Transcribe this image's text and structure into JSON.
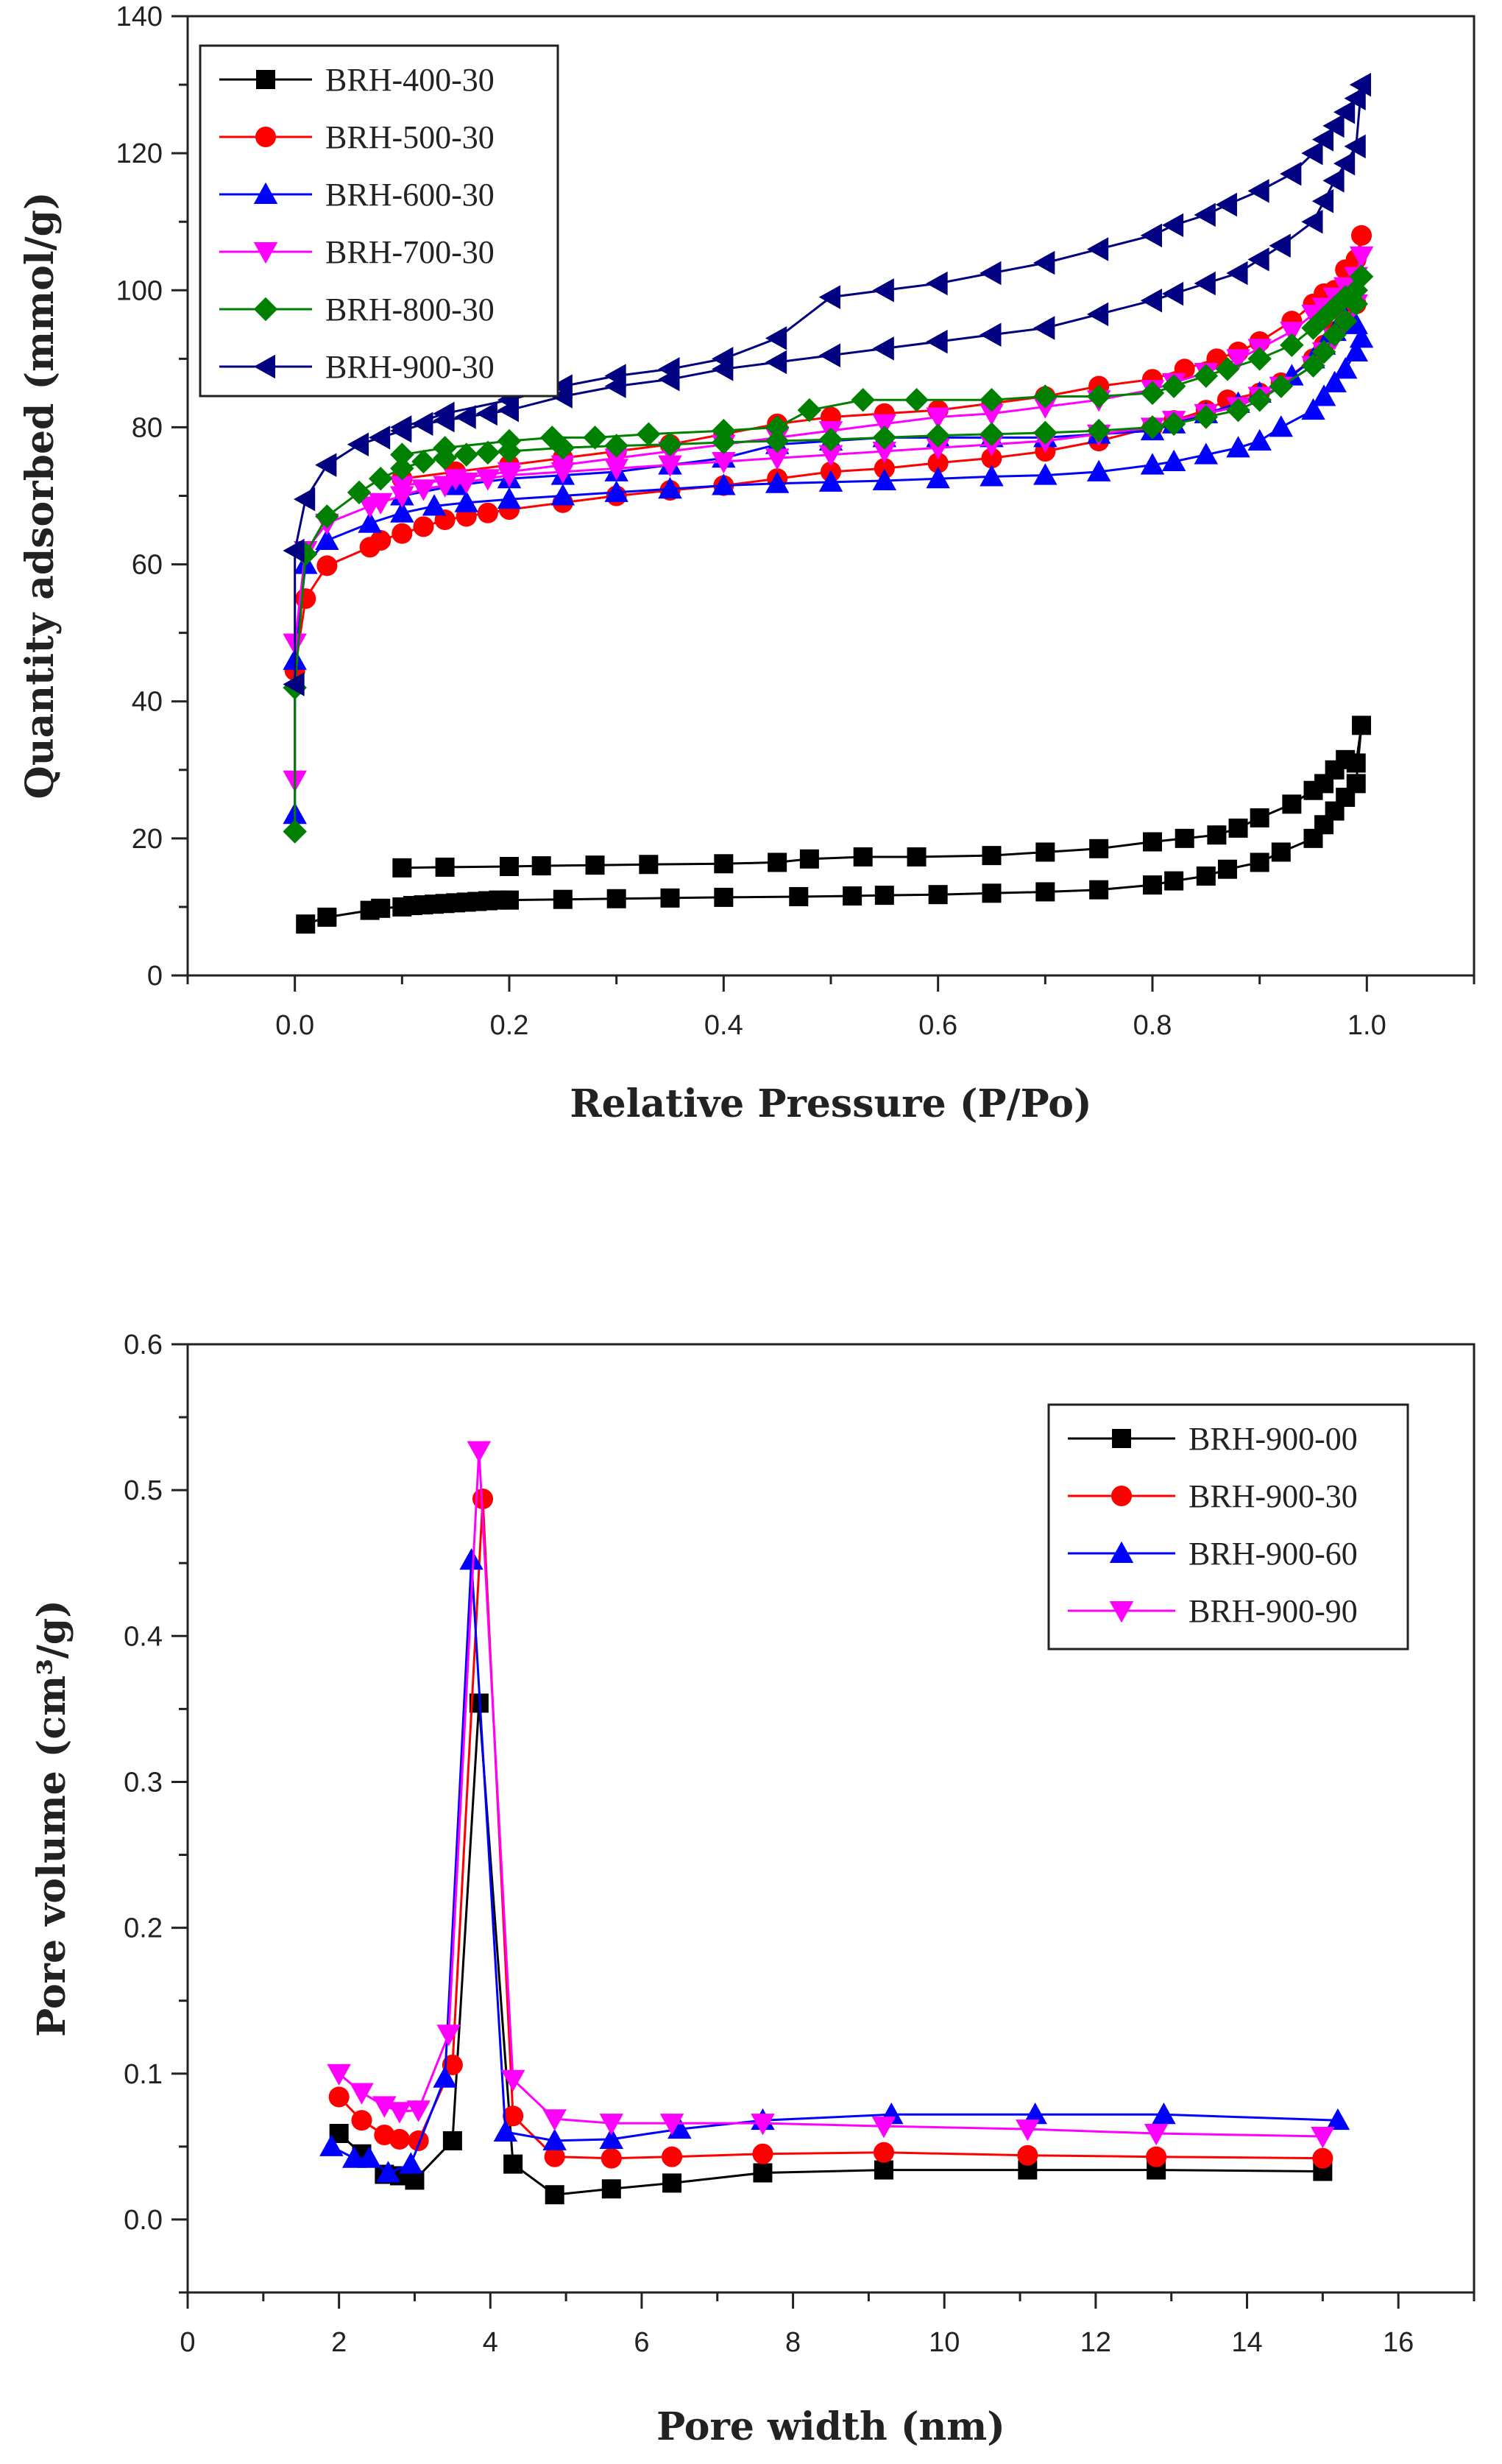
{
  "chart_data": [
    {
      "type": "line",
      "title": "",
      "xlabel": "Relative Pressure (P/Po)",
      "ylabel": "Quantity adsorbed (mmol/g)",
      "xlim": [
        -0.1,
        1.1
      ],
      "ylim": [
        0,
        140
      ],
      "xticks": [
        0.0,
        0.2,
        0.4,
        0.6,
        0.8,
        1.0
      ],
      "xtick_labels": [
        "0.0",
        "0.2",
        "0.4",
        "0.6",
        "0.8",
        "1.0"
      ],
      "yticks": [
        0,
        20,
        40,
        60,
        80,
        100,
        120,
        140
      ],
      "ytick_labels": [
        "0",
        "20",
        "40",
        "60",
        "80",
        "100",
        "120",
        "140"
      ],
      "grid": false,
      "legend_position": "top-left",
      "series": [
        {
          "name": "BRH-400-30",
          "color": "#000000",
          "marker": "square",
          "x": [
            0.01,
            0.03,
            0.07,
            0.08,
            0.1,
            0.11,
            0.12,
            0.13,
            0.14,
            0.15,
            0.16,
            0.17,
            0.18,
            0.19,
            0.2,
            0.25,
            0.3,
            0.35,
            0.4,
            0.47,
            0.52,
            0.55,
            0.6,
            0.65,
            0.7,
            0.75,
            0.8,
            0.82,
            0.85,
            0.87,
            0.9,
            0.92,
            0.95,
            0.96,
            0.97,
            0.98,
            0.99,
            0.995,
            0.99,
            0.98,
            0.97,
            0.96,
            0.95,
            0.93,
            0.9,
            0.88,
            0.86,
            0.83,
            0.8,
            0.75,
            0.7,
            0.65,
            0.58,
            0.53,
            0.48,
            0.45,
            0.4,
            0.33,
            0.28,
            0.23,
            0.2,
            0.14,
            0.1
          ],
          "y": [
            7.5,
            8.5,
            9.5,
            9.8,
            10.0,
            10.2,
            10.3,
            10.4,
            10.5,
            10.6,
            10.7,
            10.8,
            10.9,
            11.0,
            11.0,
            11.1,
            11.2,
            11.3,
            11.4,
            11.5,
            11.6,
            11.7,
            11.8,
            12.0,
            12.2,
            12.5,
            13.2,
            13.8,
            14.5,
            15.5,
            16.5,
            18.0,
            20.0,
            22.0,
            24.0,
            26.0,
            28.0,
            36.5,
            31.0,
            31.5,
            30.0,
            28.0,
            27.0,
            25.0,
            23.0,
            21.5,
            20.5,
            20.0,
            19.5,
            18.5,
            18.0,
            17.5,
            17.3,
            17.3,
            17.0,
            16.5,
            16.3,
            16.2,
            16.1,
            16.0,
            15.9,
            15.8,
            15.7
          ]
        },
        {
          "name": "BRH-500-30",
          "color": "#ff0000",
          "marker": "circle",
          "x": [
            0.0,
            0.01,
            0.03,
            0.07,
            0.08,
            0.1,
            0.12,
            0.14,
            0.16,
            0.18,
            0.2,
            0.25,
            0.3,
            0.35,
            0.4,
            0.45,
            0.5,
            0.55,
            0.6,
            0.65,
            0.7,
            0.75,
            0.8,
            0.82,
            0.85,
            0.87,
            0.9,
            0.92,
            0.95,
            0.96,
            0.97,
            0.98,
            0.99,
            0.995,
            0.99,
            0.98,
            0.97,
            0.96,
            0.95,
            0.93,
            0.9,
            0.88,
            0.86,
            0.83,
            0.8,
            0.75,
            0.7,
            0.65,
            0.6,
            0.55,
            0.5,
            0.45,
            0.4,
            0.35,
            0.3,
            0.25,
            0.2,
            0.15,
            0.1
          ],
          "y": [
            44.5,
            55.0,
            59.8,
            62.5,
            63.5,
            64.5,
            65.5,
            66.5,
            67.0,
            67.5,
            68.0,
            69.0,
            70.0,
            70.8,
            71.5,
            72.5,
            73.5,
            74.0,
            74.8,
            75.5,
            76.5,
            78.0,
            80.0,
            81.0,
            82.5,
            84.0,
            85.0,
            86.5,
            90.0,
            92.0,
            94.0,
            96.0,
            98.0,
            108.0,
            104.5,
            103.0,
            100.0,
            99.5,
            98.0,
            95.5,
            92.5,
            91.0,
            90.0,
            88.5,
            87.0,
            86.0,
            84.5,
            83.5,
            82.5,
            82.0,
            81.5,
            80.5,
            79.0,
            77.5,
            76.5,
            75.5,
            74.5,
            73.5,
            72.5
          ]
        },
        {
          "name": "BRH-600-30",
          "color": "#0000ff",
          "marker": "triangle-up",
          "x": [
            0.0,
            0.0,
            0.01,
            0.03,
            0.07,
            0.1,
            0.13,
            0.16,
            0.2,
            0.25,
            0.3,
            0.35,
            0.4,
            0.45,
            0.5,
            0.55,
            0.6,
            0.65,
            0.7,
            0.75,
            0.8,
            0.82,
            0.85,
            0.88,
            0.9,
            0.92,
            0.95,
            0.96,
            0.97,
            0.98,
            0.99,
            0.995,
            0.99,
            0.98,
            0.97,
            0.96,
            0.95,
            0.93,
            0.9,
            0.88,
            0.85,
            0.82,
            0.8,
            0.75,
            0.7,
            0.65,
            0.6,
            0.55,
            0.5,
            0.45,
            0.4,
            0.35,
            0.3,
            0.25,
            0.2,
            0.15,
            0.1
          ],
          "y": [
            23.5,
            46.0,
            60.0,
            63.5,
            66.0,
            67.5,
            68.5,
            69.0,
            69.5,
            70.0,
            70.5,
            71.0,
            71.5,
            71.8,
            72.0,
            72.2,
            72.5,
            72.8,
            73.0,
            73.5,
            74.5,
            75.0,
            76.0,
            77.0,
            78.0,
            80.0,
            82.5,
            84.5,
            86.5,
            88.5,
            91.0,
            93.0,
            95.0,
            96.0,
            94.0,
            92.0,
            90.0,
            87.5,
            85.0,
            83.5,
            82.0,
            80.5,
            79.5,
            79.0,
            78.5,
            78.5,
            78.5,
            78.5,
            78.0,
            77.5,
            75.5,
            74.5,
            73.5,
            73.0,
            72.5,
            71.5,
            70.0
          ]
        },
        {
          "name": "BRH-700-30",
          "color": "#ff00ff",
          "marker": "triangle-down",
          "x": [
            0.0,
            0.0,
            0.01,
            0.03,
            0.07,
            0.08,
            0.1,
            0.12,
            0.14,
            0.16,
            0.18,
            0.2,
            0.25,
            0.3,
            0.35,
            0.4,
            0.45,
            0.5,
            0.55,
            0.6,
            0.65,
            0.7,
            0.75,
            0.8,
            0.82,
            0.85,
            0.88,
            0.9,
            0.92,
            0.95,
            0.96,
            0.97,
            0.98,
            0.99,
            0.995,
            0.99,
            0.98,
            0.97,
            0.96,
            0.95,
            0.93,
            0.9,
            0.88,
            0.85,
            0.82,
            0.8,
            0.75,
            0.7,
            0.65,
            0.6,
            0.55,
            0.5,
            0.45,
            0.4,
            0.35,
            0.3,
            0.25,
            0.2,
            0.15,
            0.1
          ],
          "y": [
            28.5,
            48.5,
            62.0,
            66.0,
            68.5,
            69.0,
            70.0,
            71.0,
            71.5,
            72.0,
            72.5,
            73.0,
            73.5,
            74.0,
            74.5,
            75.0,
            75.5,
            76.0,
            76.5,
            77.0,
            77.5,
            78.0,
            79.0,
            80.0,
            81.0,
            82.0,
            83.0,
            84.5,
            86.0,
            89.0,
            91.0,
            93.0,
            95.5,
            98.0,
            105.0,
            102.0,
            100.5,
            99.0,
            97.5,
            96.5,
            94.0,
            91.5,
            90.0,
            88.0,
            86.5,
            85.5,
            84.0,
            83.0,
            82.0,
            81.5,
            80.5,
            79.5,
            78.5,
            77.5,
            76.5,
            75.5,
            74.5,
            73.5,
            72.5,
            71.5
          ]
        },
        {
          "name": "BRH-800-30",
          "color": "#008000",
          "marker": "diamond",
          "x": [
            0.0,
            0.0,
            0.01,
            0.03,
            0.06,
            0.08,
            0.1,
            0.12,
            0.14,
            0.16,
            0.18,
            0.2,
            0.25,
            0.3,
            0.35,
            0.4,
            0.45,
            0.5,
            0.55,
            0.6,
            0.65,
            0.7,
            0.75,
            0.8,
            0.82,
            0.85,
            0.88,
            0.9,
            0.92,
            0.95,
            0.96,
            0.97,
            0.98,
            0.99,
            0.995,
            0.99,
            0.98,
            0.97,
            0.96,
            0.95,
            0.93,
            0.9,
            0.87,
            0.85,
            0.82,
            0.8,
            0.75,
            0.7,
            0.65,
            0.58,
            0.53,
            0.48,
            0.45,
            0.4,
            0.33,
            0.28,
            0.24,
            0.2,
            0.14,
            0.1
          ],
          "y": [
            21.0,
            42.0,
            61.5,
            67.0,
            70.5,
            72.5,
            74.0,
            75.0,
            75.5,
            76.0,
            76.3,
            76.5,
            77.0,
            77.3,
            77.5,
            77.8,
            78.0,
            78.2,
            78.5,
            78.8,
            79.0,
            79.2,
            79.5,
            80.0,
            80.5,
            81.5,
            82.5,
            84.0,
            86.0,
            89.0,
            91.0,
            93.5,
            95.5,
            98.0,
            102.0,
            100.0,
            99.0,
            97.5,
            96.0,
            94.5,
            92.0,
            90.0,
            88.5,
            87.5,
            86.0,
            85.0,
            84.5,
            84.5,
            84.0,
            84.0,
            84.0,
            82.5,
            80.0,
            79.5,
            79.0,
            78.5,
            78.5,
            78.0,
            77.0,
            76.0
          ]
        },
        {
          "name": "BRH-900-30",
          "color": "#000080",
          "marker": "triangle-left",
          "x": [
            0.0,
            0.0,
            0.01,
            0.03,
            0.06,
            0.08,
            0.1,
            0.12,
            0.14,
            0.16,
            0.18,
            0.2,
            0.25,
            0.3,
            0.35,
            0.4,
            0.45,
            0.5,
            0.55,
            0.6,
            0.65,
            0.7,
            0.75,
            0.8,
            0.82,
            0.85,
            0.88,
            0.9,
            0.92,
            0.95,
            0.96,
            0.97,
            0.98,
            0.99,
            0.995,
            0.99,
            0.98,
            0.97,
            0.96,
            0.95,
            0.93,
            0.9,
            0.87,
            0.85,
            0.82,
            0.8,
            0.75,
            0.7,
            0.65,
            0.6,
            0.55,
            0.5,
            0.45,
            0.4,
            0.35,
            0.3,
            0.25,
            0.2,
            0.14,
            0.1
          ],
          "y": [
            42.5,
            62.0,
            69.5,
            74.5,
            77.5,
            78.5,
            79.5,
            80.5,
            81.0,
            81.5,
            82.0,
            82.5,
            84.5,
            86.0,
            87.0,
            88.5,
            89.5,
            90.5,
            91.5,
            92.5,
            93.5,
            94.5,
            96.5,
            98.5,
            99.5,
            101.0,
            102.5,
            104.5,
            106.5,
            110.0,
            113.0,
            116.0,
            118.5,
            121.0,
            130.0,
            128.0,
            126.0,
            124.0,
            122.0,
            120.0,
            117.0,
            114.5,
            112.5,
            111.0,
            109.5,
            108.0,
            106.0,
            104.0,
            102.5,
            101.0,
            100.0,
            99.0,
            93.0,
            90.0,
            88.5,
            87.5,
            86.0,
            84.0,
            82.0,
            80.0
          ]
        }
      ]
    },
    {
      "type": "line",
      "title": "",
      "xlabel": "Pore width (nm)",
      "ylabel": "Pore volume (cm³/g)",
      "xlim": [
        0,
        17
      ],
      "ylim": [
        -0.05,
        0.6
      ],
      "xticks": [
        0,
        2,
        4,
        6,
        8,
        10,
        12,
        14,
        16
      ],
      "xtick_labels": [
        "0",
        "2",
        "4",
        "6",
        "8",
        "10",
        "12",
        "14",
        "16"
      ],
      "yticks": [
        0.0,
        0.1,
        0.2,
        0.3,
        0.4,
        0.5,
        0.6
      ],
      "ytick_labels": [
        "0.0",
        "0.1",
        "0.2",
        "0.3",
        "0.4",
        "0.5",
        "0.6"
      ],
      "grid": false,
      "legend_position": "top-right",
      "series": [
        {
          "name": "BRH-900-00",
          "color": "#000000",
          "marker": "square",
          "x": [
            2.0,
            2.3,
            2.6,
            2.8,
            3.0,
            3.5,
            3.85,
            4.3,
            4.85,
            5.6,
            6.4,
            7.6,
            9.2,
            11.1,
            12.8,
            15.0
          ],
          "y": [
            0.059,
            0.045,
            0.031,
            0.03,
            0.027,
            0.054,
            0.354,
            0.038,
            0.017,
            0.021,
            0.025,
            0.032,
            0.034,
            0.034,
            0.034,
            0.033
          ]
        },
        {
          "name": "BRH-900-30",
          "color": "#ff0000",
          "marker": "circle",
          "x": [
            2.0,
            2.3,
            2.6,
            2.8,
            3.05,
            3.5,
            3.9,
            4.3,
            4.85,
            5.6,
            6.4,
            7.6,
            9.2,
            11.1,
            12.8,
            15.0
          ],
          "y": [
            0.084,
            0.068,
            0.058,
            0.055,
            0.054,
            0.106,
            0.494,
            0.071,
            0.043,
            0.042,
            0.043,
            0.045,
            0.046,
            0.044,
            0.043,
            0.042
          ]
        },
        {
          "name": "BRH-900-60",
          "color": "#0000ff",
          "marker": "triangle-up",
          "x": [
            1.9,
            2.2,
            2.4,
            2.65,
            2.95,
            3.4,
            3.75,
            4.2,
            4.85,
            5.6,
            6.5,
            7.6,
            9.3,
            11.2,
            12.9,
            15.2
          ],
          "y": [
            0.05,
            0.042,
            0.042,
            0.032,
            0.038,
            0.097,
            0.452,
            0.06,
            0.054,
            0.055,
            0.062,
            0.068,
            0.072,
            0.072,
            0.072,
            0.068
          ]
        },
        {
          "name": "BRH-900-90",
          "color": "#ff00ff",
          "marker": "triangle-down",
          "x": [
            2.0,
            2.3,
            2.6,
            2.8,
            3.05,
            3.45,
            3.85,
            4.3,
            4.85,
            5.6,
            6.4,
            7.6,
            9.2,
            11.1,
            12.8,
            15.0
          ],
          "y": [
            0.1,
            0.087,
            0.078,
            0.074,
            0.075,
            0.127,
            0.527,
            0.096,
            0.069,
            0.066,
            0.066,
            0.066,
            0.064,
            0.062,
            0.059,
            0.057
          ]
        }
      ]
    }
  ]
}
